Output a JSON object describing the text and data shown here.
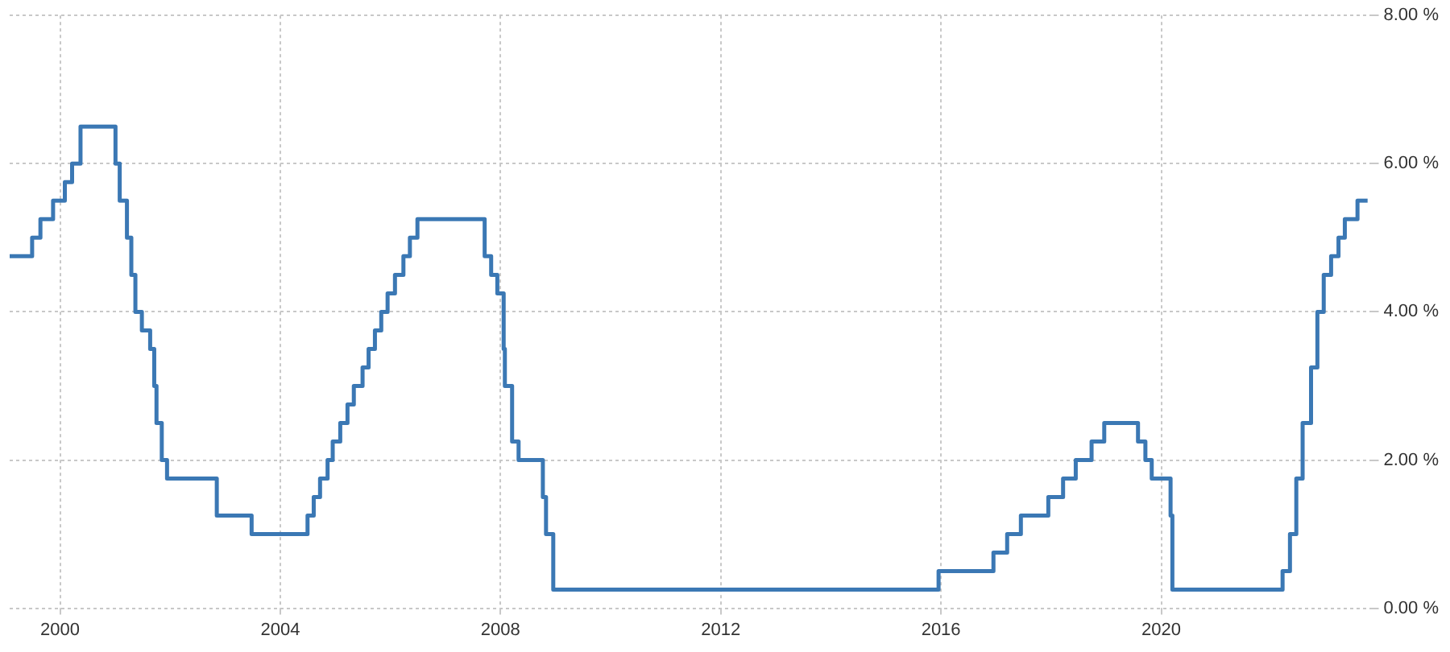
{
  "chart_data": {
    "type": "step",
    "color": "#3b78b4",
    "x": [
      "1999-02",
      "1999-06-30",
      "1999-08-24",
      "1999-11-16",
      "2000-02-02",
      "2000-03-21",
      "2000-05-16",
      "2001-01-03",
      "2001-01-31",
      "2001-03-20",
      "2001-04-18",
      "2001-05-15",
      "2001-06-27",
      "2001-08-21",
      "2001-09-17",
      "2001-10-02",
      "2001-11-06",
      "2001-12-11",
      "2002-11-06",
      "2003-06-25",
      "2004-06-30",
      "2004-08-10",
      "2004-09-21",
      "2004-11-10",
      "2004-12-14",
      "2005-02-02",
      "2005-03-22",
      "2005-05-03",
      "2005-06-30",
      "2005-08-09",
      "2005-09-20",
      "2005-11-01",
      "2005-12-13",
      "2006-01-31",
      "2006-03-28",
      "2006-05-10",
      "2006-06-29",
      "2007-09-18",
      "2007-10-31",
      "2007-12-11",
      "2008-01-22",
      "2008-01-30",
      "2008-03-18",
      "2008-04-30",
      "2008-10-08",
      "2008-10-29",
      "2008-12-16",
      "2015-12-16",
      "2016-12-14",
      "2017-03-15",
      "2017-06-14",
      "2017-12-13",
      "2018-03-21",
      "2018-06-13",
      "2018-09-26",
      "2018-12-19",
      "2019-07-31",
      "2019-09-18",
      "2019-10-30",
      "2020-03-03",
      "2020-03-15",
      "2022-03-16",
      "2022-05-04",
      "2022-06-15",
      "2022-07-27",
      "2022-09-21",
      "2022-11-02",
      "2022-12-14",
      "2023-02-01",
      "2023-03-22",
      "2023-05-03",
      "2023-07-26",
      "2023-10"
    ],
    "values": [
      4.75,
      5.0,
      5.25,
      5.5,
      5.75,
      6.0,
      6.5,
      6.0,
      5.5,
      5.0,
      4.5,
      4.0,
      3.75,
      3.5,
      3.0,
      2.5,
      2.0,
      1.75,
      1.25,
      1.0,
      1.25,
      1.5,
      1.75,
      2.0,
      2.25,
      2.5,
      2.75,
      3.0,
      3.25,
      3.5,
      3.75,
      4.0,
      4.25,
      4.5,
      4.75,
      5.0,
      5.25,
      4.75,
      4.5,
      4.25,
      3.5,
      3.0,
      2.25,
      2.0,
      1.5,
      1.0,
      0.25,
      0.5,
      0.75,
      1.0,
      1.25,
      1.5,
      1.75,
      2.0,
      2.25,
      2.5,
      2.25,
      2.0,
      1.75,
      1.25,
      0.25,
      0.5,
      1.0,
      1.75,
      2.5,
      3.25,
      4.0,
      4.5,
      4.75,
      5.0,
      5.25,
      5.5,
      5.5
    ],
    "xlim": [
      "1999-02",
      "2023-11"
    ],
    "xticks": [
      "2000",
      "2004",
      "2008",
      "2012",
      "2016",
      "2020"
    ],
    "ylim": [
      0,
      8
    ],
    "yticks": [
      {
        "value": 0,
        "label": "0.00 %"
      },
      {
        "value": 2,
        "label": "2.00 %"
      },
      {
        "value": 4,
        "label": "4.00 %"
      },
      {
        "value": 6,
        "label": "6.00 %"
      },
      {
        "value": 8,
        "label": "8.00 %"
      }
    ],
    "grid": true,
    "legend": false
  }
}
